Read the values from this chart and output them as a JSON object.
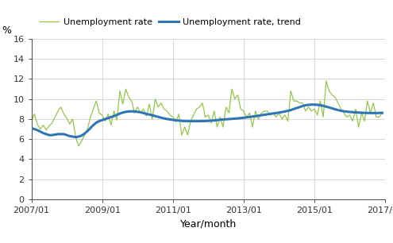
{
  "ylabel": "%",
  "xlabel": "Year/month",
  "xtick_labels": [
    "2007/01",
    "2009/01",
    "2011/01",
    "2013/01",
    "2015/01",
    "2017/01"
  ],
  "ylim": [
    0,
    16
  ],
  "ytick_values": [
    0,
    2,
    4,
    6,
    8,
    10,
    12,
    14,
    16
  ],
  "legend_entries": [
    "Unemployment rate",
    "Unemployment rate, trend"
  ],
  "line_color_unemp": "#8dc63f",
  "line_color_trend": "#2e75b6",
  "background_color": "#ffffff",
  "grid_color": "#c8c8c8",
  "unemployment_rate": [
    7.8,
    8.5,
    7.5,
    7.0,
    7.4,
    6.9,
    7.3,
    7.6,
    8.2,
    8.8,
    9.2,
    8.5,
    8.1,
    7.5,
    8.0,
    6.2,
    5.3,
    5.8,
    6.4,
    7.0,
    8.2,
    9.0,
    9.8,
    8.6,
    8.4,
    7.8,
    8.5,
    7.4,
    8.8,
    7.9,
    10.8,
    9.5,
    11.0,
    10.2,
    9.8,
    8.6,
    9.2,
    8.6,
    9.0,
    8.3,
    9.5,
    8.0,
    10.0,
    9.2,
    9.6,
    9.0,
    8.8,
    8.4,
    8.2,
    7.7,
    8.5,
    6.4,
    7.2,
    6.4,
    7.8,
    8.4,
    9.0,
    9.2,
    9.6,
    8.2,
    8.4,
    7.6,
    8.8,
    7.2,
    8.2,
    7.2,
    9.2,
    8.6,
    11.0,
    10.0,
    10.4,
    9.0,
    8.8,
    8.2,
    8.6,
    7.2,
    8.8,
    8.0,
    8.6,
    8.8,
    8.8,
    8.4,
    8.6,
    8.2,
    8.6,
    8.0,
    8.4,
    7.8,
    10.8,
    9.8,
    9.8,
    9.6,
    9.6,
    8.8,
    9.2,
    8.8,
    9.0,
    8.4,
    9.8,
    8.2,
    11.8,
    10.8,
    10.4,
    10.2,
    9.6,
    9.0,
    8.6,
    8.2,
    8.4,
    7.8,
    9.0,
    7.2,
    8.6,
    7.8,
    9.8,
    8.6,
    9.6,
    8.2,
    8.2,
    8.6
  ],
  "trend_rate": [
    7.1,
    7.0,
    6.9,
    6.75,
    6.6,
    6.5,
    6.4,
    6.4,
    6.45,
    6.5,
    6.5,
    6.5,
    6.4,
    6.3,
    6.25,
    6.2,
    6.25,
    6.35,
    6.55,
    6.8,
    7.1,
    7.4,
    7.65,
    7.8,
    7.9,
    8.0,
    8.1,
    8.2,
    8.3,
    8.42,
    8.55,
    8.65,
    8.72,
    8.76,
    8.77,
    8.76,
    8.72,
    8.67,
    8.6,
    8.52,
    8.45,
    8.38,
    8.3,
    8.22,
    8.14,
    8.07,
    8.01,
    7.96,
    7.92,
    7.88,
    7.85,
    7.82,
    7.8,
    7.79,
    7.79,
    7.79,
    7.79,
    7.79,
    7.8,
    7.8,
    7.82,
    7.84,
    7.87,
    7.9,
    7.93,
    7.96,
    7.98,
    8.0,
    8.02,
    8.05,
    8.07,
    8.1,
    8.13,
    8.17,
    8.21,
    8.25,
    8.29,
    8.34,
    8.38,
    8.43,
    8.47,
    8.52,
    8.56,
    8.6,
    8.65,
    8.7,
    8.76,
    8.82,
    8.9,
    9.0,
    9.1,
    9.2,
    9.3,
    9.38,
    9.42,
    9.44,
    9.44,
    9.42,
    9.38,
    9.32,
    9.24,
    9.16,
    9.07,
    8.98,
    8.9,
    8.83,
    8.78,
    8.74,
    8.71,
    8.69,
    8.67,
    8.65,
    8.63,
    8.62,
    8.61,
    8.6,
    8.6,
    8.6,
    8.61,
    8.62
  ]
}
